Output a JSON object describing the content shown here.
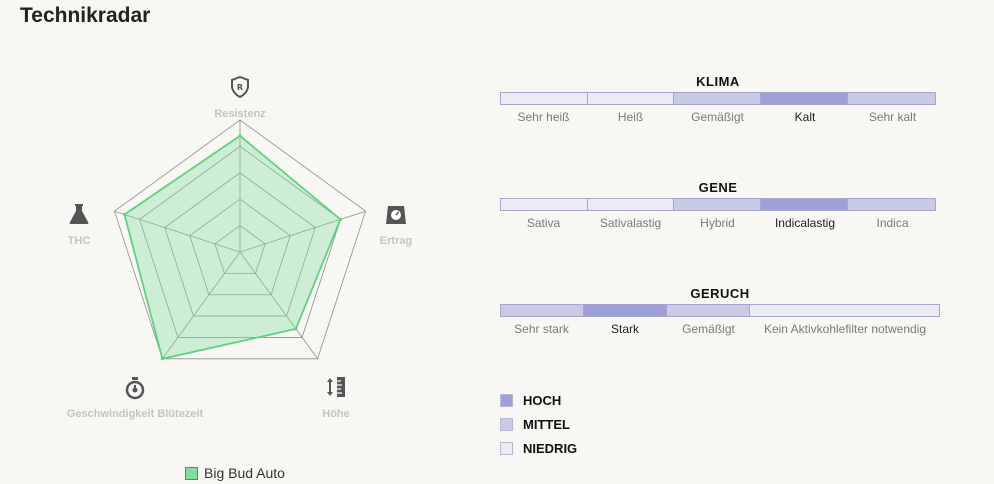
{
  "page": {
    "title": "Technikradar"
  },
  "colors": {
    "high": "#9ea1d8",
    "medium": "#c9cae6",
    "low": "#ebebf2",
    "radar_fill": "#86dca0",
    "radar_stroke": "#5fd27f"
  },
  "chart_data": [
    {
      "type": "radar",
      "axes": [
        "Resistenz",
        "Ertrag",
        "Höhe",
        "Geschwindigkeit Blütezeit",
        "THC"
      ],
      "axis_icons": [
        "shield-r-icon",
        "scale-icon",
        "height-ruler-icon",
        "stopwatch-icon",
        "flask-icon"
      ],
      "rlim": [
        0,
        5
      ],
      "grid_levels": 5,
      "series": [
        {
          "name": "Big Bud Auto",
          "values": [
            4.4,
            4.0,
            3.6,
            5.0,
            4.6
          ]
        }
      ],
      "legend": "bottom"
    },
    {
      "type": "table",
      "scales": [
        {
          "title": "KLIMA",
          "labels": [
            "Sehr heiß",
            "Heiß",
            "Gemäßigt",
            "Kalt",
            "Sehr kalt"
          ],
          "levels": [
            "low",
            "low",
            "medium",
            "high",
            "medium"
          ]
        },
        {
          "title": "GENE",
          "labels": [
            "Sativa",
            "Sativalastig",
            "Hybrid",
            "Indicalastig",
            "Indica"
          ],
          "levels": [
            "low",
            "low",
            "medium",
            "high",
            "medium"
          ]
        },
        {
          "title": "GERUCH",
          "labels": [
            "Sehr stark",
            "Stark",
            "Gemäßigt",
            "Kein Aktivkohlefilter notwendig"
          ],
          "levels": [
            "medium",
            "high",
            "medium",
            "low"
          ]
        }
      ],
      "key": [
        {
          "label": "HOCH",
          "level": "high"
        },
        {
          "label": "MITTEL",
          "level": "medium"
        },
        {
          "label": "NIEDRIG",
          "level": "low"
        }
      ]
    }
  ]
}
